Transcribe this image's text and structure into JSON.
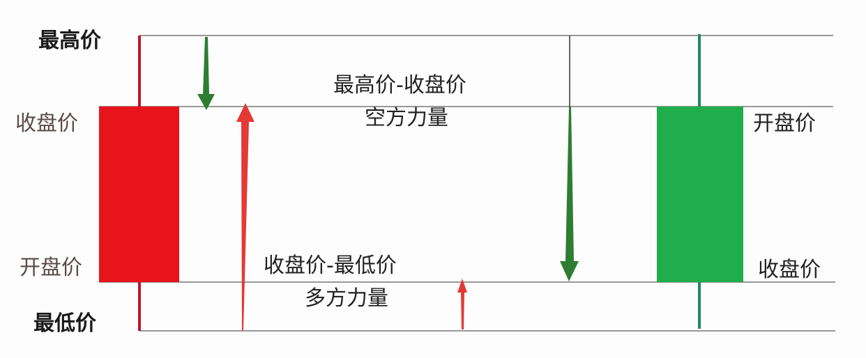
{
  "colors": {
    "bullish": "#e8141c",
    "bearish": "#1fae4b",
    "bear_arrow": "#2e7d32",
    "bull_arrow": "#e53935",
    "line": "#777777"
  },
  "left_labels": {
    "high": "最高价",
    "close": "收盘价",
    "open": "开盘价",
    "low": "最低价"
  },
  "right_labels": {
    "open": "开盘价",
    "close": "收盘价"
  },
  "upper_annotation": {
    "formula": "最高价-收盘价",
    "meaning": "空方力量"
  },
  "lower_annotation": {
    "formula": "收盘价-最低价",
    "meaning": "多方力量"
  }
}
